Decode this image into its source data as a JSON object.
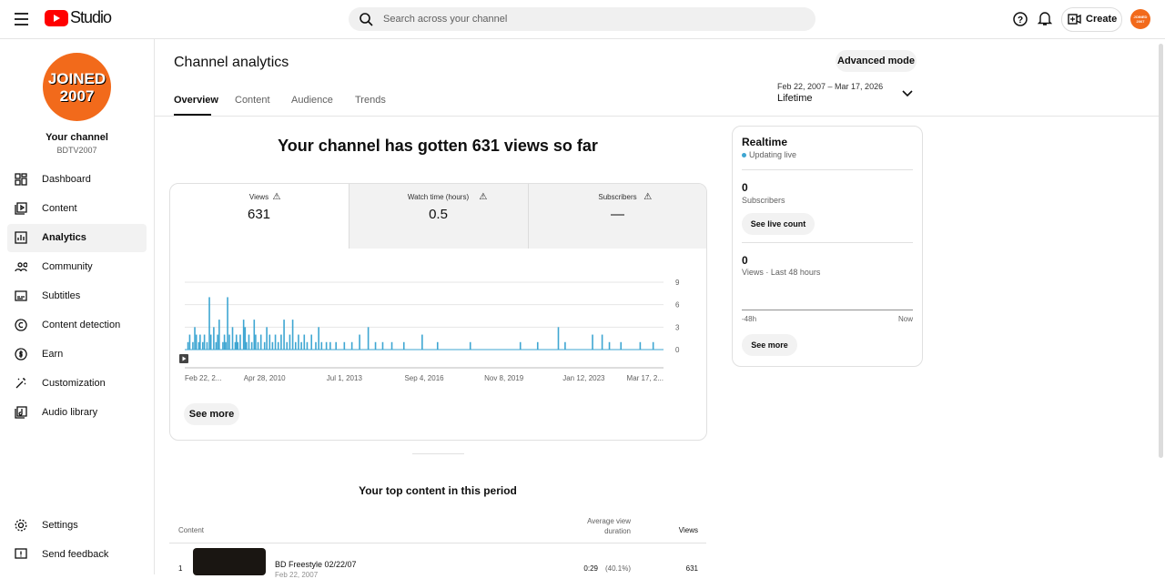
{
  "header": {
    "logo": "Studio",
    "search_placeholder": "Search across your channel",
    "create": "Create"
  },
  "avatar_text": [
    "JOINED",
    "2007"
  ],
  "sidebar": {
    "channel_title": "Your channel",
    "channel_handle": "BDTV2007",
    "nav": [
      "Dashboard",
      "Content",
      "Analytics",
      "Community",
      "Subtitles",
      "Content detection",
      "Earn",
      "Customization",
      "Audio library"
    ],
    "footer": [
      "Settings",
      "Send feedback"
    ]
  },
  "page": {
    "title": "Channel analytics",
    "tabs": [
      "Overview",
      "Content",
      "Audience",
      "Trends"
    ],
    "advanced_mode": "Advanced mode",
    "date_range": "Feb 22, 2007 – Mar 17, 2026",
    "date_label": "Lifetime",
    "headline": "Your channel has gotten 631 views so far"
  },
  "metrics": [
    {
      "label": "Views",
      "value": "631"
    },
    {
      "label": "Watch time (hours)",
      "value": "0.5"
    },
    {
      "label": "Subscribers",
      "value": "—"
    }
  ],
  "chart_data": {
    "type": "bar",
    "color": "#3ea6d2",
    "grid": true,
    "xlim": [
      "Feb 22, 2007",
      "Mar 17, 2026"
    ],
    "xticks": [
      {
        "value": "Feb 22, 2007",
        "label": "Feb 22, 2..."
      },
      "Apr 28, 2010",
      "Jul 1, 2013",
      "Sep 4, 2016",
      "Nov 8, 2019",
      "Jan 12, 2023",
      {
        "value": "Mar 17, 2026",
        "label": "Mar 17, 2..."
      }
    ],
    "ylim": [
      0,
      9
    ],
    "yticks": [
      0,
      3,
      6,
      9
    ],
    "x": [
      "Apr 10, 2007",
      "May 5, 2007",
      "Jun 20, 2007",
      "Jul 18, 2007",
      "Aug 9, 2007",
      "Sep 14, 2007",
      "Oct 3, 2007",
      "Nov 11, 2007",
      "Dec 5, 2007",
      "Jan 12, 2008",
      "Feb 15, 2008",
      "Mar 8, 2008",
      "Apr 19, 2008",
      "May 22, 2008",
      "Jun 14, 2008",
      "Jul 7, 2008",
      "Aug 30, 2008",
      "Sep 21, 2008",
      "Oct 11, 2008",
      "Nov 6, 2008",
      "Dec 2, 2008",
      "Jan 17, 2009",
      "Feb 25, 2009",
      "Mar 14, 2009",
      "Apr 4, 2009",
      "May 9, 2009",
      "Jun 27, 2009",
      "Jul 19, 2009",
      "Aug 8, 2009",
      "Sep 12, 2009",
      "Oct 24, 2009",
      "Nov 28, 2009",
      "Dec 19, 2009",
      "Jan 23, 2010",
      "Mar 6, 2010",
      "Apr 28, 2010",
      "May 30, 2010",
      "Jul 11, 2010",
      "Aug 21, 2010",
      "Oct 2, 2010",
      "Nov 13, 2010",
      "Dec 25, 2010",
      "Feb 5, 2011",
      "Mar 19, 2011",
      "Apr 30, 2011",
      "Jun 11, 2011",
      "Jul 23, 2011",
      "Sep 3, 2011",
      "Oct 15, 2011",
      "Nov 26, 2011",
      "Jan 7, 2012",
      "Mar 10, 2012",
      "May 12, 2012",
      "Jun 23, 2012",
      "Aug 4, 2012",
      "Oct 13, 2012",
      "Dec 8, 2012",
      "Mar 2, 2013",
      "Jul 1, 2013",
      "Oct 19, 2013",
      "Feb 8, 2014",
      "Jun 14, 2014",
      "Sep 27, 2014",
      "Jan 10, 2015",
      "May 23, 2015",
      "Nov 14, 2015",
      "Aug 6, 2016",
      "Mar 18, 2017",
      "Jul 7, 2018",
      "Jul 4, 2020",
      "Mar 13, 2021",
      "Jan 8, 2022",
      "Apr 16, 2022",
      "May 20, 2023",
      "Oct 7, 2023",
      "Jan 20, 2024",
      "Jul 6, 2024",
      "Apr 12, 2025",
      "Oct 18, 2025"
    ],
    "values": [
      1,
      2,
      1,
      3,
      2,
      1,
      2,
      1,
      2,
      1,
      7,
      2,
      3,
      1,
      2,
      4,
      1,
      2,
      1,
      7,
      2,
      3,
      1,
      2,
      1,
      2,
      4,
      3,
      1,
      2,
      1,
      4,
      2,
      1,
      2,
      1,
      3,
      2,
      1,
      2,
      1,
      2,
      4,
      1,
      2,
      4,
      1,
      2,
      1,
      2,
      1,
      2,
      1,
      3,
      1,
      1,
      1,
      1,
      1,
      1,
      2,
      3,
      1,
      1,
      1,
      1,
      2,
      1,
      1,
      1,
      1,
      3,
      1,
      2,
      2,
      1,
      1,
      1,
      1
    ]
  },
  "see_more": "See more",
  "top_content": {
    "title": "Your top content in this period",
    "columns": [
      "Content",
      "Average view duration",
      "Views"
    ],
    "rows": [
      {
        "rank": "1",
        "title": "BD Freestyle 02/22/07",
        "date": "Feb 22, 2007",
        "duration": "0:29",
        "percent": "(40.1%)",
        "views": "631"
      }
    ]
  },
  "realtime": {
    "title": "Realtime",
    "status": "Updating live",
    "subscribers_value": "0",
    "subscribers_label": "Subscribers",
    "live_count_button": "See live count",
    "views_value": "0",
    "views_label": "Views · Last 48 hours",
    "axis_start": "-48h",
    "axis_end": "Now",
    "see_more": "See more"
  }
}
